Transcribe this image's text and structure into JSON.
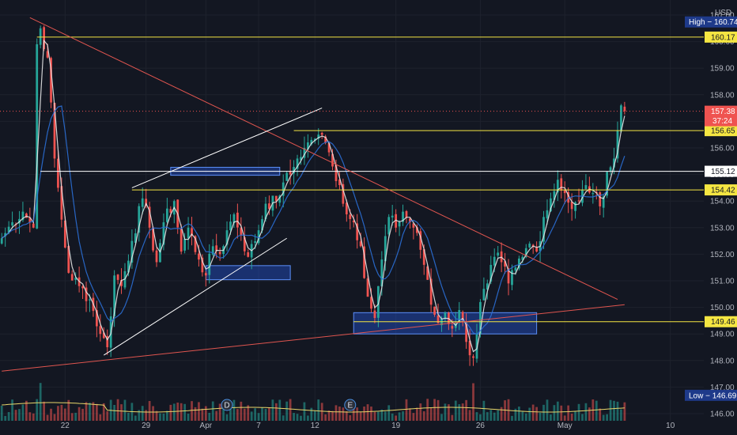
{
  "currency": "USD",
  "colors": {
    "background": "#131722",
    "grid": "#1e222d",
    "up": "#26a69a",
    "down": "#ef5350",
    "white_line": "#ffffff",
    "yellow_line": "#f5e642",
    "trend_red": "#e0554f",
    "zone_blue": "#2962ff",
    "ma_white": "#e6e6e6",
    "ma_blue": "#2b6fd6",
    "volume_ma": "#e8d66a",
    "axis_text": "#b2b5be"
  },
  "chart_data": {
    "type": "candlestick",
    "instrument_currency": "USD",
    "ylim": [
      146.0,
      161.0
    ],
    "y_ticks": [
      "161.00",
      "160.00",
      "159.00",
      "158.00",
      "157.00",
      "156.00",
      "155.00",
      "154.00",
      "153.00",
      "152.00",
      "151.00",
      "150.00",
      "149.00",
      "148.00",
      "147.00",
      "146.00"
    ],
    "x_ticks": [
      "22",
      "29",
      "Apr",
      "7",
      "12",
      "19",
      "26",
      "May",
      "10"
    ],
    "x_tick_index": [
      18,
      41,
      58,
      73,
      89,
      112,
      136,
      160,
      190
    ],
    "bars_total": 200,
    "grid": true,
    "high_low_labels": {
      "high": "High",
      "high_value": "160.74",
      "low": "Low",
      "low_value": "146.69"
    },
    "last_price": {
      "value": "157.38",
      "countdown": "37:24"
    },
    "horizontal_levels": [
      {
        "price": 160.17,
        "label": "160.17",
        "color": "yellow",
        "start_index": 10
      },
      {
        "price": 156.65,
        "label": "156.65",
        "color": "yellow",
        "start_index": 83
      },
      {
        "price": 155.12,
        "label": "155.12",
        "color": "white",
        "start_index": 11
      },
      {
        "price": 154.42,
        "label": "154.42",
        "color": "yellow",
        "start_index": 37
      },
      {
        "price": 149.46,
        "label": "149.46",
        "color": "yellow",
        "start_index": 100
      }
    ],
    "trendlines": [
      {
        "color": "red",
        "from": [
          8,
          160.9
        ],
        "to": [
          175,
          150.3
        ]
      },
      {
        "color": "red",
        "from": [
          0,
          147.6
        ],
        "to": [
          177,
          150.1
        ]
      },
      {
        "color": "white",
        "from": [
          37,
          154.5
        ],
        "to": [
          91,
          157.5
        ]
      },
      {
        "color": "white",
        "from": [
          29,
          148.2
        ],
        "to": [
          81,
          152.6
        ]
      }
    ],
    "zones": [
      {
        "from": [
          48,
          155.27
        ],
        "to": [
          79,
          154.97
        ]
      },
      {
        "from": [
          58,
          151.57
        ],
        "to": [
          82,
          151.04
        ]
      },
      {
        "from": [
          100,
          149.8
        ],
        "to": [
          152,
          149.0
        ]
      }
    ],
    "event_markers": [
      {
        "label": "D",
        "index": 64
      },
      {
        "label": "E",
        "index": 99
      }
    ],
    "anchors": [
      [
        0,
        152.6
      ],
      [
        3,
        153.2
      ],
      [
        6,
        153.6
      ],
      [
        9,
        153.0
      ],
      [
        10,
        159.9
      ],
      [
        11,
        160.5
      ],
      [
        13,
        159.4
      ],
      [
        15,
        155.6
      ],
      [
        17,
        153.3
      ],
      [
        19,
        151.3
      ],
      [
        22,
        150.8
      ],
      [
        25,
        150.3
      ],
      [
        28,
        149.0
      ],
      [
        30,
        148.5
      ],
      [
        32,
        151.2
      ],
      [
        34,
        150.8
      ],
      [
        37,
        152.5
      ],
      [
        40,
        154.1
      ],
      [
        42,
        153.0
      ],
      [
        44,
        151.7
      ],
      [
        46,
        153.2
      ],
      [
        49,
        154.0
      ],
      [
        51,
        152.1
      ],
      [
        53,
        153.0
      ],
      [
        56,
        151.8
      ],
      [
        58,
        151.2
      ],
      [
        60,
        152.3
      ],
      [
        62,
        152.0
      ],
      [
        64,
        152.9
      ],
      [
        66,
        153.5
      ],
      [
        68,
        152.7
      ],
      [
        70,
        151.9
      ],
      [
        73,
        152.9
      ],
      [
        75,
        153.9
      ],
      [
        78,
        154.0
      ],
      [
        80,
        154.7
      ],
      [
        82,
        155.0
      ],
      [
        84,
        155.6
      ],
      [
        86,
        156.0
      ],
      [
        88,
        156.3
      ],
      [
        90,
        156.5
      ],
      [
        92,
        156.2
      ],
      [
        94,
        155.3
      ],
      [
        96,
        154.6
      ],
      [
        98,
        153.5
      ],
      [
        100,
        153.2
      ],
      [
        102,
        152.3
      ],
      [
        104,
        150.4
      ],
      [
        106,
        149.6
      ],
      [
        108,
        151.8
      ],
      [
        110,
        153.4
      ],
      [
        112,
        153.0
      ],
      [
        114,
        153.6
      ],
      [
        116,
        153.2
      ],
      [
        118,
        152.8
      ],
      [
        120,
        151.6
      ],
      [
        122,
        150.1
      ],
      [
        124,
        149.4
      ],
      [
        126,
        149.8
      ],
      [
        128,
        149.2
      ],
      [
        130,
        149.9
      ],
      [
        132,
        148.7
      ],
      [
        134,
        148.1
      ],
      [
        136,
        150.2
      ],
      [
        138,
        150.9
      ],
      [
        140,
        151.9
      ],
      [
        142,
        151.7
      ],
      [
        144,
        150.9
      ],
      [
        146,
        151.5
      ],
      [
        148,
        151.9
      ],
      [
        150,
        152.4
      ],
      [
        152,
        152.1
      ],
      [
        154,
        153.4
      ],
      [
        156,
        154.1
      ],
      [
        158,
        154.8
      ],
      [
        160,
        154.3
      ],
      [
        162,
        153.7
      ],
      [
        164,
        154.0
      ],
      [
        166,
        154.6
      ],
      [
        168,
        154.3
      ],
      [
        170,
        153.8
      ],
      [
        172,
        155.1
      ],
      [
        174,
        155.6
      ],
      [
        176,
        157.6
      ],
      [
        177,
        157.38
      ]
    ]
  }
}
